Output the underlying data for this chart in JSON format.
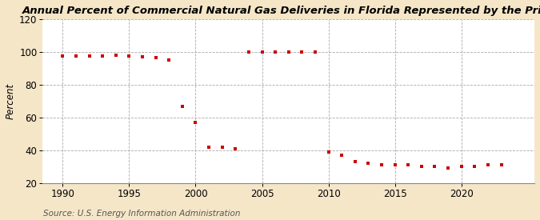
{
  "title": "Annual Percent of Commercial Natural Gas Deliveries in Florida Represented by the Price",
  "ylabel": "Percent",
  "source": "Source: U.S. Energy Information Administration",
  "fig_background_color": "#f5e6c8",
  "plot_background_color": "#ffffff",
  "marker_color": "#cc0000",
  "years": [
    1990,
    1991,
    1992,
    1993,
    1994,
    1995,
    1996,
    1997,
    1998,
    1999,
    2000,
    2001,
    2002,
    2003,
    2004,
    2005,
    2006,
    2007,
    2008,
    2009,
    2010,
    2011,
    2012,
    2013,
    2014,
    2015,
    2016,
    2017,
    2018,
    2019,
    2020,
    2021,
    2022,
    2023
  ],
  "values": [
    97.5,
    97.5,
    97.5,
    97.5,
    98.0,
    97.5,
    97.0,
    96.5,
    95.0,
    67.0,
    57.0,
    42.0,
    42.0,
    41.0,
    100.0,
    100.0,
    100.0,
    100.0,
    100.0,
    100.0,
    39.0,
    37.0,
    33.0,
    32.0,
    31.0,
    31.0,
    31.0,
    30.0,
    30.0,
    29.0,
    30.0,
    30.0,
    31.0,
    31.0
  ],
  "ylim": [
    20,
    120
  ],
  "xlim": [
    1988.5,
    2025.5
  ],
  "yticks": [
    20,
    40,
    60,
    80,
    100,
    120
  ],
  "xticks": [
    1990,
    1995,
    2000,
    2005,
    2010,
    2015,
    2020
  ],
  "grid_color": "#aaaaaa",
  "title_fontsize": 9.5,
  "ylabel_fontsize": 8.5,
  "tick_fontsize": 8.5,
  "source_fontsize": 7.5,
  "marker_size": 11
}
